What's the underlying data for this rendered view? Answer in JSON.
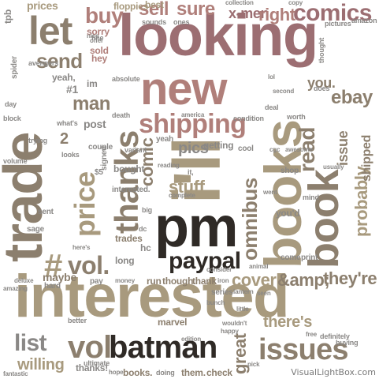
{
  "palette": {
    "taupe": "#8c7f6e",
    "khaki": "#a89a7e",
    "rose": "#b07f7a",
    "mauve": "#9c6e72",
    "dark": "#2f2a26",
    "grey": "#8a8886",
    "olive": "#8a8466",
    "sand": "#c9b89a"
  },
  "watermark": "VisualLightBox.com",
  "words": [
    {
      "text": "looking",
      "c": "mauve"
    },
    {
      "text": "interested",
      "c": "khaki"
    },
    {
      "text": "trade",
      "c": "taupe"
    },
    {
      "text": "books",
      "c": "khaki"
    },
    {
      "text": "i'll",
      "c": "khaki"
    },
    {
      "text": "pm",
      "c": "dark"
    },
    {
      "text": "new",
      "c": "rose"
    },
    {
      "text": "thanks",
      "c": "taupe"
    },
    {
      "text": "batman",
      "c": "dark"
    },
    {
      "text": "issues",
      "c": "taupe"
    },
    {
      "text": "comics",
      "c": "mauve"
    },
    {
      "text": "let",
      "c": "taupe"
    },
    {
      "text": "shipping",
      "c": "rose"
    },
    {
      "text": "vol",
      "c": "taupe"
    },
    {
      "text": "book",
      "c": "taupe"
    },
    {
      "text": "price",
      "c": "khaki"
    },
    {
      "text": "paypal",
      "c": "dark"
    },
    {
      "text": "omnibus",
      "c": "taupe"
    },
    {
      "text": "send",
      "c": "taupe"
    },
    {
      "text": "buy",
      "c": "rose"
    },
    {
      "text": "sell",
      "c": "rose"
    },
    {
      "text": "sure",
      "c": "rose"
    },
    {
      "text": "read",
      "c": "taupe"
    },
    {
      "text": "ebay",
      "c": "taupe"
    },
    {
      "text": "#",
      "c": "khaki"
    },
    {
      "text": "vol.",
      "c": "taupe"
    },
    {
      "text": "list",
      "c": "grey"
    },
    {
      "text": "comic",
      "c": "taupe"
    },
    {
      "text": "stuff",
      "c": "khaki"
    },
    {
      "text": "cover",
      "c": "khaki"
    },
    {
      "text": "probably",
      "c": "khaki"
    },
    {
      "text": "they're",
      "c": "taupe"
    },
    {
      "text": "&amp;",
      "c": "taupe"
    },
    {
      "text": "man",
      "c": "taupe"
    },
    {
      "text": "pics",
      "c": "grey"
    },
    {
      "text": "x-men",
      "c": "mauve"
    },
    {
      "text": "shipped",
      "c": "taupe"
    },
    {
      "text": "issue",
      "c": "taupe"
    },
    {
      "text": "you.",
      "c": "taupe"
    },
    {
      "text": "right",
      "c": "rose"
    },
    {
      "text": "willing",
      "c": "khaki"
    },
    {
      "text": "there's",
      "c": "khaki"
    },
    {
      "text": "great",
      "c": "taupe"
    },
    {
      "text": "thanks!",
      "c": "grey"
    },
    {
      "text": "run",
      "c": "taupe"
    },
    {
      "text": "though.",
      "c": "taupe"
    },
    {
      "text": "thank",
      "c": "taupe"
    },
    {
      "text": "prices",
      "c": "khaki"
    },
    {
      "text": "floppies",
      "c": "khaki"
    },
    {
      "text": "best",
      "c": "khaki"
    },
    {
      "text": "collection",
      "c": "grey"
    },
    {
      "text": "copy",
      "c": "grey"
    },
    {
      "text": "sorry",
      "c": "rose"
    },
    {
      "text": "sold",
      "c": "rose"
    },
    {
      "text": "hey",
      "c": "rose"
    },
    {
      "text": "sounds",
      "c": "grey"
    },
    {
      "text": "ones",
      "c": "grey"
    },
    {
      "text": "trades",
      "c": "taupe"
    },
    {
      "text": "maybe",
      "c": "taupe"
    },
    {
      "text": "hard",
      "c": "grey"
    },
    {
      "text": "series",
      "c": "grey"
    },
    {
      "text": "marvel",
      "c": "taupe"
    },
    {
      "text": "edition",
      "c": "grey"
    },
    {
      "text": "check",
      "c": "taupe"
    },
    {
      "text": "them.",
      "c": "taupe"
    },
    {
      "text": "books.",
      "c": "taupe"
    },
    {
      "text": "doing",
      "c": "grey"
    },
    {
      "text": "definitely",
      "c": "grey"
    },
    {
      "text": "buying",
      "c": "grey"
    },
    {
      "text": "shop",
      "c": "grey"
    },
    {
      "text": "you'd",
      "c": "grey"
    },
    {
      "text": "print",
      "c": "grey"
    },
    {
      "text": "come",
      "c": "grey"
    },
    {
      "text": "bought",
      "c": "grey"
    },
    {
      "text": "interested.",
      "c": "grey"
    },
    {
      "text": "getting",
      "c": "grey"
    },
    {
      "text": "cool",
      "c": "grey"
    },
    {
      "text": "yeah",
      "c": "grey"
    },
    {
      "text": "couple",
      "c": "grey"
    },
    {
      "text": "post",
      "c": "grey"
    },
    {
      "text": "what's",
      "c": "grey"
    },
    {
      "text": "#1",
      "c": "grey"
    },
    {
      "text": "2",
      "c": "taupe"
    },
    {
      "text": "im",
      "c": "grey"
    },
    {
      "text": "yeah,",
      "c": "grey"
    },
    {
      "text": "spider",
      "c": "grey"
    },
    {
      "text": "amazon",
      "c": "grey"
    },
    {
      "text": "pictures",
      "c": "grey"
    },
    {
      "text": "thought",
      "c": "grey"
    },
    {
      "text": "tpb",
      "c": "grey"
    },
    {
      "text": "avengers",
      "c": "grey"
    },
    {
      "text": "does",
      "c": "grey"
    },
    {
      "text": "worth",
      "c": "grey"
    },
    {
      "text": "deal",
      "c": "grey"
    },
    {
      "text": "condition",
      "c": "grey"
    },
    {
      "text": "absolute",
      "c": "grey"
    },
    {
      "text": "death",
      "c": "grey"
    },
    {
      "text": "america",
      "c": "grey"
    },
    {
      "text": "fine",
      "c": "grey"
    },
    {
      "text": "offer",
      "c": "grey"
    },
    {
      "text": "nice",
      "c": "grey"
    },
    {
      "text": "variant",
      "c": "grey"
    },
    {
      "text": "signed",
      "c": "grey"
    },
    {
      "text": "$5",
      "c": "grey"
    },
    {
      "text": "sent",
      "c": "grey"
    },
    {
      "text": "sage",
      "c": "grey"
    },
    {
      "text": "deluxe",
      "c": "grey"
    },
    {
      "text": "pay",
      "c": "grey"
    },
    {
      "text": "money",
      "c": "grey"
    },
    {
      "text": "iron",
      "c": "grey"
    },
    {
      "text": "consider",
      "c": "grey"
    },
    {
      "text": "animal",
      "c": "grey"
    },
    {
      "text": "little",
      "c": "grey"
    },
    {
      "text": "bunch",
      "c": "grey"
    },
    {
      "text": "happy",
      "c": "grey"
    },
    {
      "text": "pick",
      "c": "grey"
    },
    {
      "text": "free",
      "c": "grey"
    },
    {
      "text": "better",
      "c": "grey"
    },
    {
      "text": "ultimate",
      "c": "grey"
    },
    {
      "text": "hope",
      "c": "grey"
    },
    {
      "text": "lantern",
      "c": "grey"
    },
    {
      "text": "seen",
      "c": "grey"
    },
    {
      "text": "mind",
      "c": "grey"
    },
    {
      "text": "went",
      "c": "grey"
    },
    {
      "text": "awesome",
      "c": "grey"
    },
    {
      "text": "cgc",
      "c": "grey"
    },
    {
      "text": "usually",
      "c": "grey"
    },
    {
      "text": "lol",
      "c": "grey"
    },
    {
      "text": "second",
      "c": "grey"
    },
    {
      "text": "block",
      "c": "grey"
    },
    {
      "text": "day",
      "c": "grey"
    },
    {
      "text": "trying",
      "c": "grey"
    },
    {
      "text": "volume",
      "c": "grey"
    },
    {
      "text": "looks",
      "c": "grey"
    },
    {
      "text": "dc",
      "c": "grey"
    },
    {
      "text": "big",
      "c": "grey"
    },
    {
      "text": "complete",
      "c": "grey"
    },
    {
      "text": "reading",
      "c": "grey"
    },
    {
      "text": "it,",
      "c": "grey"
    },
    {
      "text": "hc",
      "c": "grey"
    },
    {
      "text": "long",
      "c": "grey"
    },
    {
      "text": "here's",
      "c": "grey"
    },
    {
      "text": "wouldn't",
      "c": "grey"
    },
    {
      "text": "amazing",
      "c": "grey"
    },
    {
      "text": "fantastic",
      "c": "grey"
    }
  ]
}
